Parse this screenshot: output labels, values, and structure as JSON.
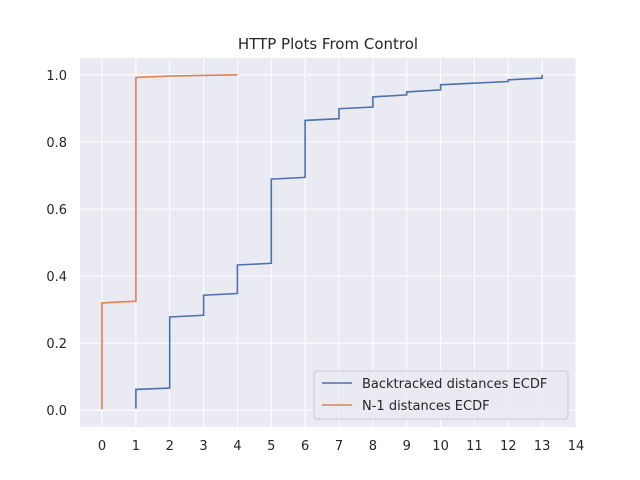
{
  "chart_data": {
    "type": "line",
    "title": "HTTP Plots From Control",
    "xlabel": "",
    "ylabel": "",
    "xlim": [
      -0.65,
      14.0
    ],
    "ylim": [
      -0.05,
      1.05
    ],
    "x_ticks": [
      0,
      1,
      2,
      3,
      4,
      5,
      6,
      7,
      8,
      9,
      10,
      11,
      12,
      13,
      14
    ],
    "y_ticks": [
      0.0,
      0.2,
      0.4,
      0.6,
      0.8,
      1.0
    ],
    "x_tick_labels": [
      "0",
      "1",
      "2",
      "3",
      "4",
      "5",
      "6",
      "7",
      "8",
      "9",
      "10",
      "11",
      "12",
      "13",
      "14"
    ],
    "y_tick_labels": [
      "0.0",
      "0.2",
      "0.4",
      "0.6",
      "0.8",
      "1.0"
    ],
    "grid": true,
    "legend_position": "lower-right",
    "background_color": "#eaeaf2",
    "series": [
      {
        "name": "Backtracked distances ECDF",
        "color": "#4c72b0",
        "points": [
          [
            1,
            0.005
          ],
          [
            1,
            0.062
          ],
          [
            2,
            0.066
          ],
          [
            2,
            0.278
          ],
          [
            3,
            0.283
          ],
          [
            3,
            0.343
          ],
          [
            4,
            0.348
          ],
          [
            4,
            0.433
          ],
          [
            5,
            0.438
          ],
          [
            5,
            0.689
          ],
          [
            6,
            0.694
          ],
          [
            6,
            0.864
          ],
          [
            7,
            0.869
          ],
          [
            7,
            0.899
          ],
          [
            8,
            0.904
          ],
          [
            8,
            0.934
          ],
          [
            9,
            0.94
          ],
          [
            9,
            0.949
          ],
          [
            10,
            0.955
          ],
          [
            10,
            0.97
          ],
          [
            12,
            0.98
          ],
          [
            12,
            0.985
          ],
          [
            13,
            0.99
          ],
          [
            13,
            1.0
          ]
        ]
      },
      {
        "name": "N-1 distances ECDF",
        "color": "#dd8452",
        "points": [
          [
            0,
            0.003
          ],
          [
            0,
            0.32
          ],
          [
            1,
            0.325
          ],
          [
            1,
            0.992
          ],
          [
            2,
            0.996
          ],
          [
            4,
            1.0
          ]
        ]
      }
    ]
  }
}
